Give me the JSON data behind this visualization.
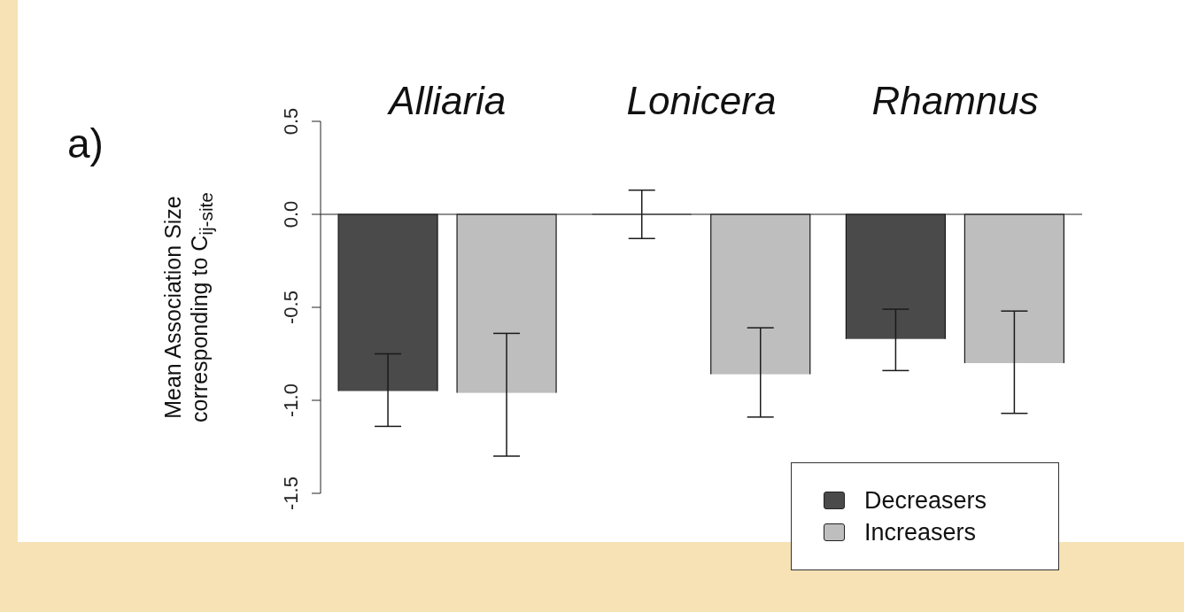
{
  "chart_data": {
    "type": "bar",
    "categories": [
      "Alliaria",
      "Lonicera",
      "Rhamnus"
    ],
    "ylabel": "Mean Association Size corresponding to C$_{ij-site}$",
    "series": [
      {
        "name": "Decreasers",
        "color": "#4a4a4a",
        "values": [
          -0.95,
          0,
          -0.67
        ],
        "errors": [
          [
            -1.14,
            -0.75
          ],
          [
            -0.13,
            0.13
          ],
          [
            -0.84,
            -0.51
          ]
        ]
      },
      {
        "name": "Increasers",
        "color": "#bebebe",
        "values": [
          -0.96,
          -0.86,
          -0.8
        ],
        "errors": [
          [
            -1.3,
            -0.64
          ],
          [
            -1.09,
            -0.61
          ],
          [
            -1.07,
            -0.52
          ]
        ]
      }
    ],
    "ylim": [
      -1.5,
      0.5
    ],
    "yticks": [
      -1.5,
      {
        "value": -1,
        "label": "-1.0"
      },
      -0.5,
      {
        "value": 0,
        "label": "0.0"
      },
      0.5
    ],
    "ref_lines": [
      {
        "axis": "y",
        "value": 0
      }
    ],
    "legend": "bottom right",
    "annotations": [
      "a)"
    ]
  }
}
